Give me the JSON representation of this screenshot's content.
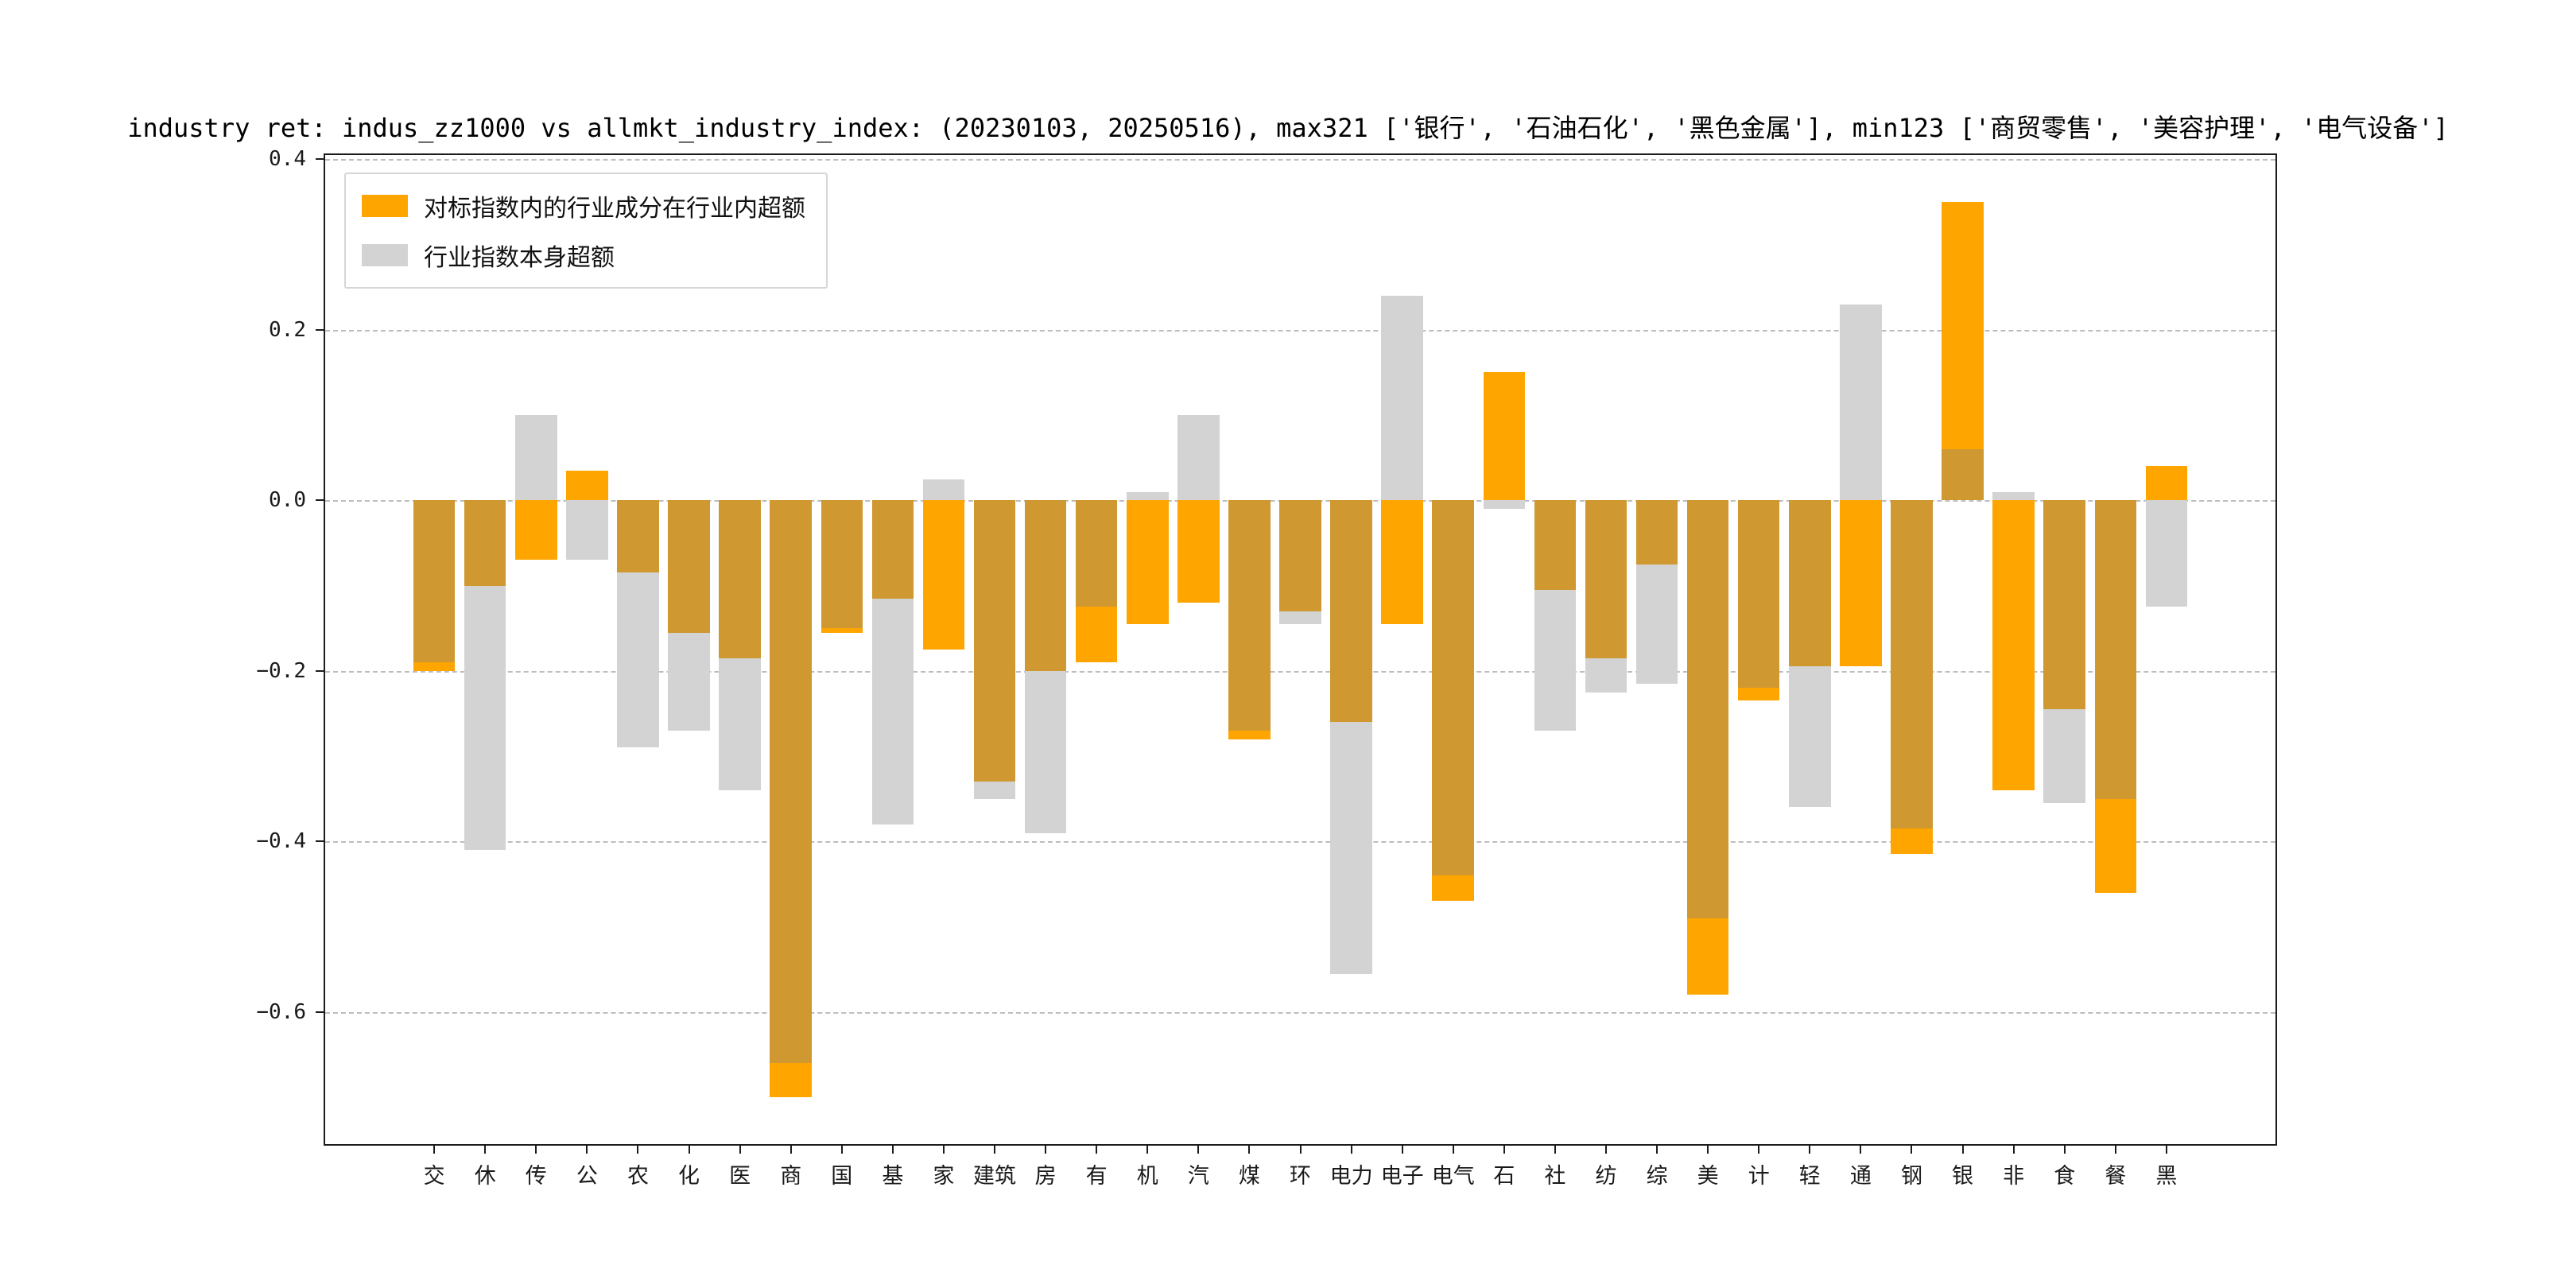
{
  "title": "industry ret: indus_zz1000 vs allmkt_industry_index: (20230103, 20250516), max321 ['银行', '石油石化', '黑色金属'], min123 ['商贸零售', '美容护理', '电气设备']",
  "legend": {
    "items": [
      {
        "label": "对标指数内的行业成分在行业内超额",
        "color": "#FFA500"
      },
      {
        "label": "行业指数本身超额",
        "color": "#D3D3D3"
      }
    ]
  },
  "chart_data": {
    "type": "bar",
    "title": "industry ret: indus_zz1000 vs allmkt_industry_index: (20230103, 20250516), max321 ['银行', '石油石化', '黑色金属'], min123 ['商贸零售', '美容护理', '电气设备']",
    "categories": [
      "交",
      "休",
      "传",
      "公",
      "农",
      "化",
      "医",
      "商",
      "国",
      "基",
      "家",
      "建筑",
      "房",
      "有",
      "机",
      "汽",
      "煤",
      "环",
      "电力",
      "电子",
      "电气",
      "石",
      "社",
      "纺",
      "综",
      "美",
      "计",
      "轻",
      "通",
      "钢",
      "银",
      "非",
      "食",
      "餐",
      "黑"
    ],
    "series": [
      {
        "name": "对标指数内的行业成分在行业内超额",
        "color": "#FFA500",
        "values": [
          -0.2,
          -0.1,
          -0.07,
          0.035,
          -0.085,
          -0.155,
          -0.185,
          -0.7,
          -0.155,
          -0.115,
          -0.175,
          -0.33,
          -0.2,
          -0.19,
          -0.145,
          -0.12,
          -0.28,
          -0.13,
          -0.26,
          -0.145,
          -0.47,
          0.15,
          -0.105,
          -0.185,
          -0.075,
          -0.58,
          -0.235,
          -0.195,
          -0.195,
          -0.415,
          0.35,
          -0.34,
          -0.245,
          -0.46,
          0.04
        ]
      },
      {
        "name": "行业指数本身超额",
        "color": "#D3D3D3",
        "values": [
          -0.19,
          -0.41,
          0.1,
          -0.07,
          -0.29,
          -0.27,
          -0.34,
          -0.66,
          -0.15,
          -0.38,
          0.025,
          -0.35,
          -0.39,
          -0.125,
          0.01,
          0.1,
          -0.27,
          -0.145,
          -0.555,
          0.24,
          -0.44,
          -0.01,
          -0.27,
          -0.225,
          -0.215,
          -0.49,
          -0.22,
          -0.36,
          0.23,
          -0.385,
          0.06,
          0.01,
          -0.355,
          -0.35,
          -0.125
        ]
      }
    ],
    "overlap_color": "#CF9830",
    "bar_style": "overlaid",
    "ylim": [
      -0.755,
      0.405
    ],
    "yticks": [
      0.4,
      0.2,
      0.0,
      -0.2,
      -0.4,
      -0.6
    ],
    "ytick_labels": [
      "0.4",
      "0.2",
      "0.0",
      "−0.2",
      "−0.4",
      "−0.6"
    ],
    "xlabel": "",
    "ylabel": "",
    "grid": "dashed horizontal",
    "legend_position": "upper left"
  }
}
